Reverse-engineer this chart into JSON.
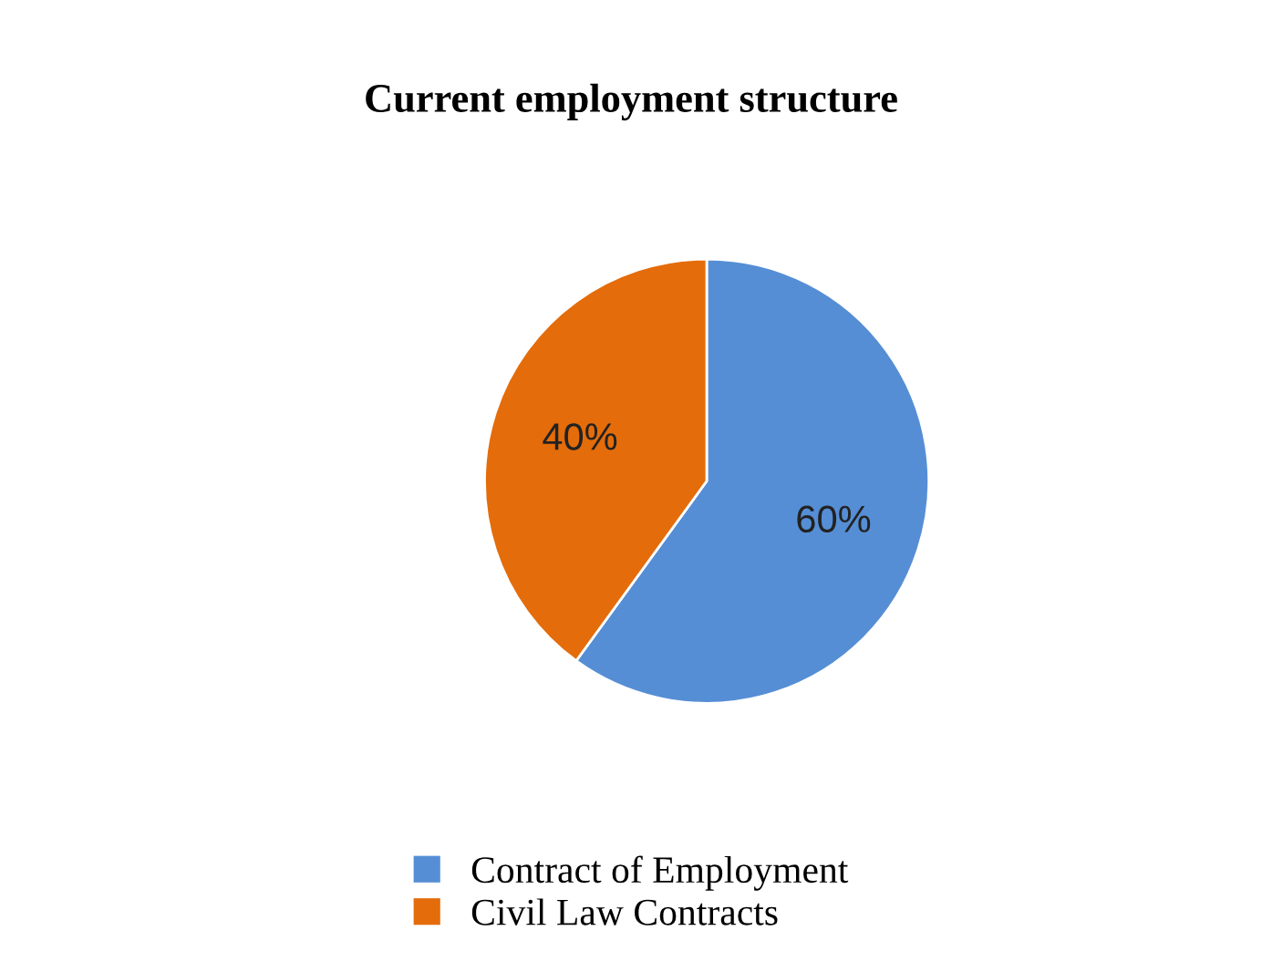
{
  "chart_data": {
    "type": "pie",
    "title": "Current employment structure",
    "categories": [
      "Contract of Employment",
      "Civil Law Contracts"
    ],
    "values": [
      60,
      40
    ],
    "colors": [
      "#558ed5",
      "#e46c0a"
    ],
    "value_labels": [
      "60%",
      "40%"
    ],
    "legend": "bottom"
  }
}
